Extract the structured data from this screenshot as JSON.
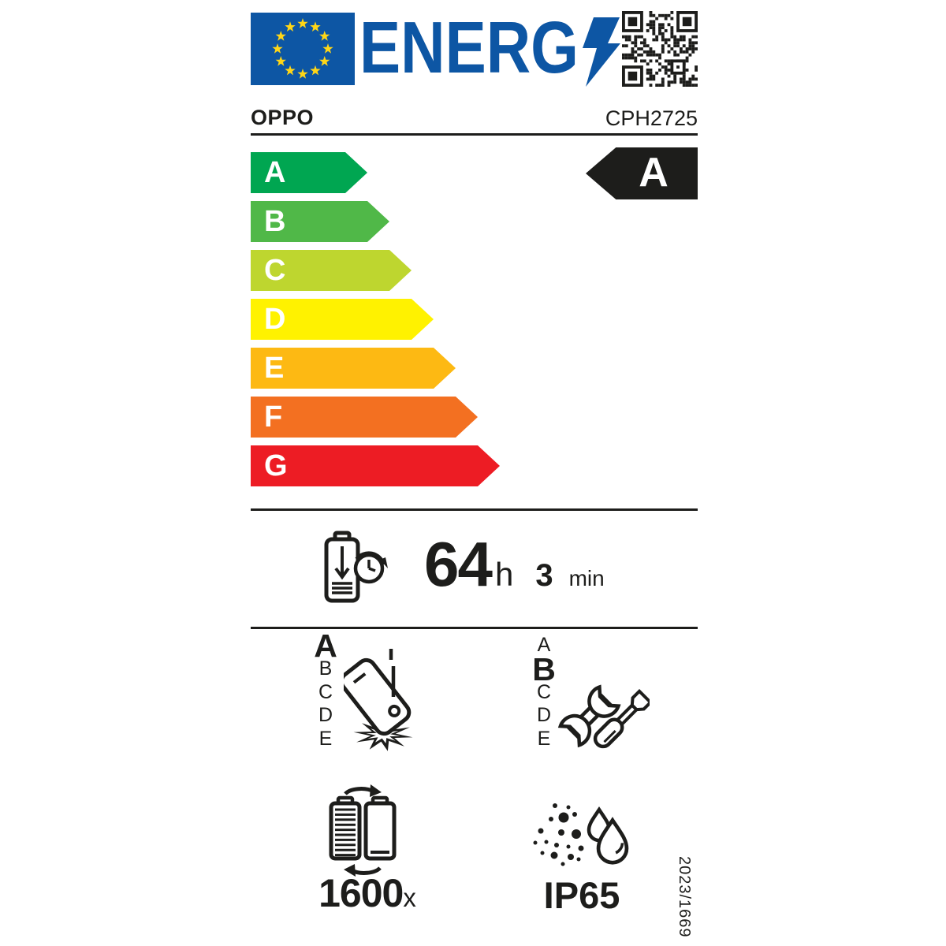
{
  "label": {
    "logo_text": "ENERG",
    "brand": "OPPO",
    "model": "CPH2725",
    "colors": {
      "eu_blue": "#0d56a4",
      "logo_blue": "#0d56a4",
      "star_yellow": "#ffd617",
      "ink_black": "#1d1d1b"
    },
    "efficiency_scale": [
      {
        "letter": "A",
        "color": "#00a651"
      },
      {
        "letter": "B",
        "color": "#50b848"
      },
      {
        "letter": "C",
        "color": "#bed62f"
      },
      {
        "letter": "D",
        "color": "#fff200"
      },
      {
        "letter": "E",
        "color": "#fdb913"
      },
      {
        "letter": "F",
        "color": "#f37021"
      },
      {
        "letter": "G",
        "color": "#ed1c24"
      }
    ],
    "energy_class": "A",
    "battery_endurance": {
      "hours": "64",
      "hours_unit": "h",
      "minutes": "3",
      "minutes_unit": "min"
    },
    "drop_reliability": {
      "class": "A",
      "scale": [
        "A",
        "B",
        "C",
        "D",
        "E"
      ]
    },
    "repairability": {
      "class": "B",
      "scale": [
        "A",
        "B",
        "C",
        "D",
        "E"
      ]
    },
    "battery_cycles": {
      "value": "1600",
      "unit": "x"
    },
    "ingress_protection": "IP65",
    "regulation_number": "2023/1669",
    "icons": {
      "eu-flag-icon": "EU flag with circle of stars",
      "qr-code": "QR code",
      "lightning-bolt-icon": "lightning bolt (Y of ENERGY)",
      "battery-clock-icon": "battery endurance per charge",
      "falling-phone-icon": "drop reliability",
      "repair-tools-icon": "wrench and screwdriver repairability",
      "battery-cycle-icon": "battery charge cycles",
      "dust-water-icon": "dust and water ingress protection"
    }
  }
}
